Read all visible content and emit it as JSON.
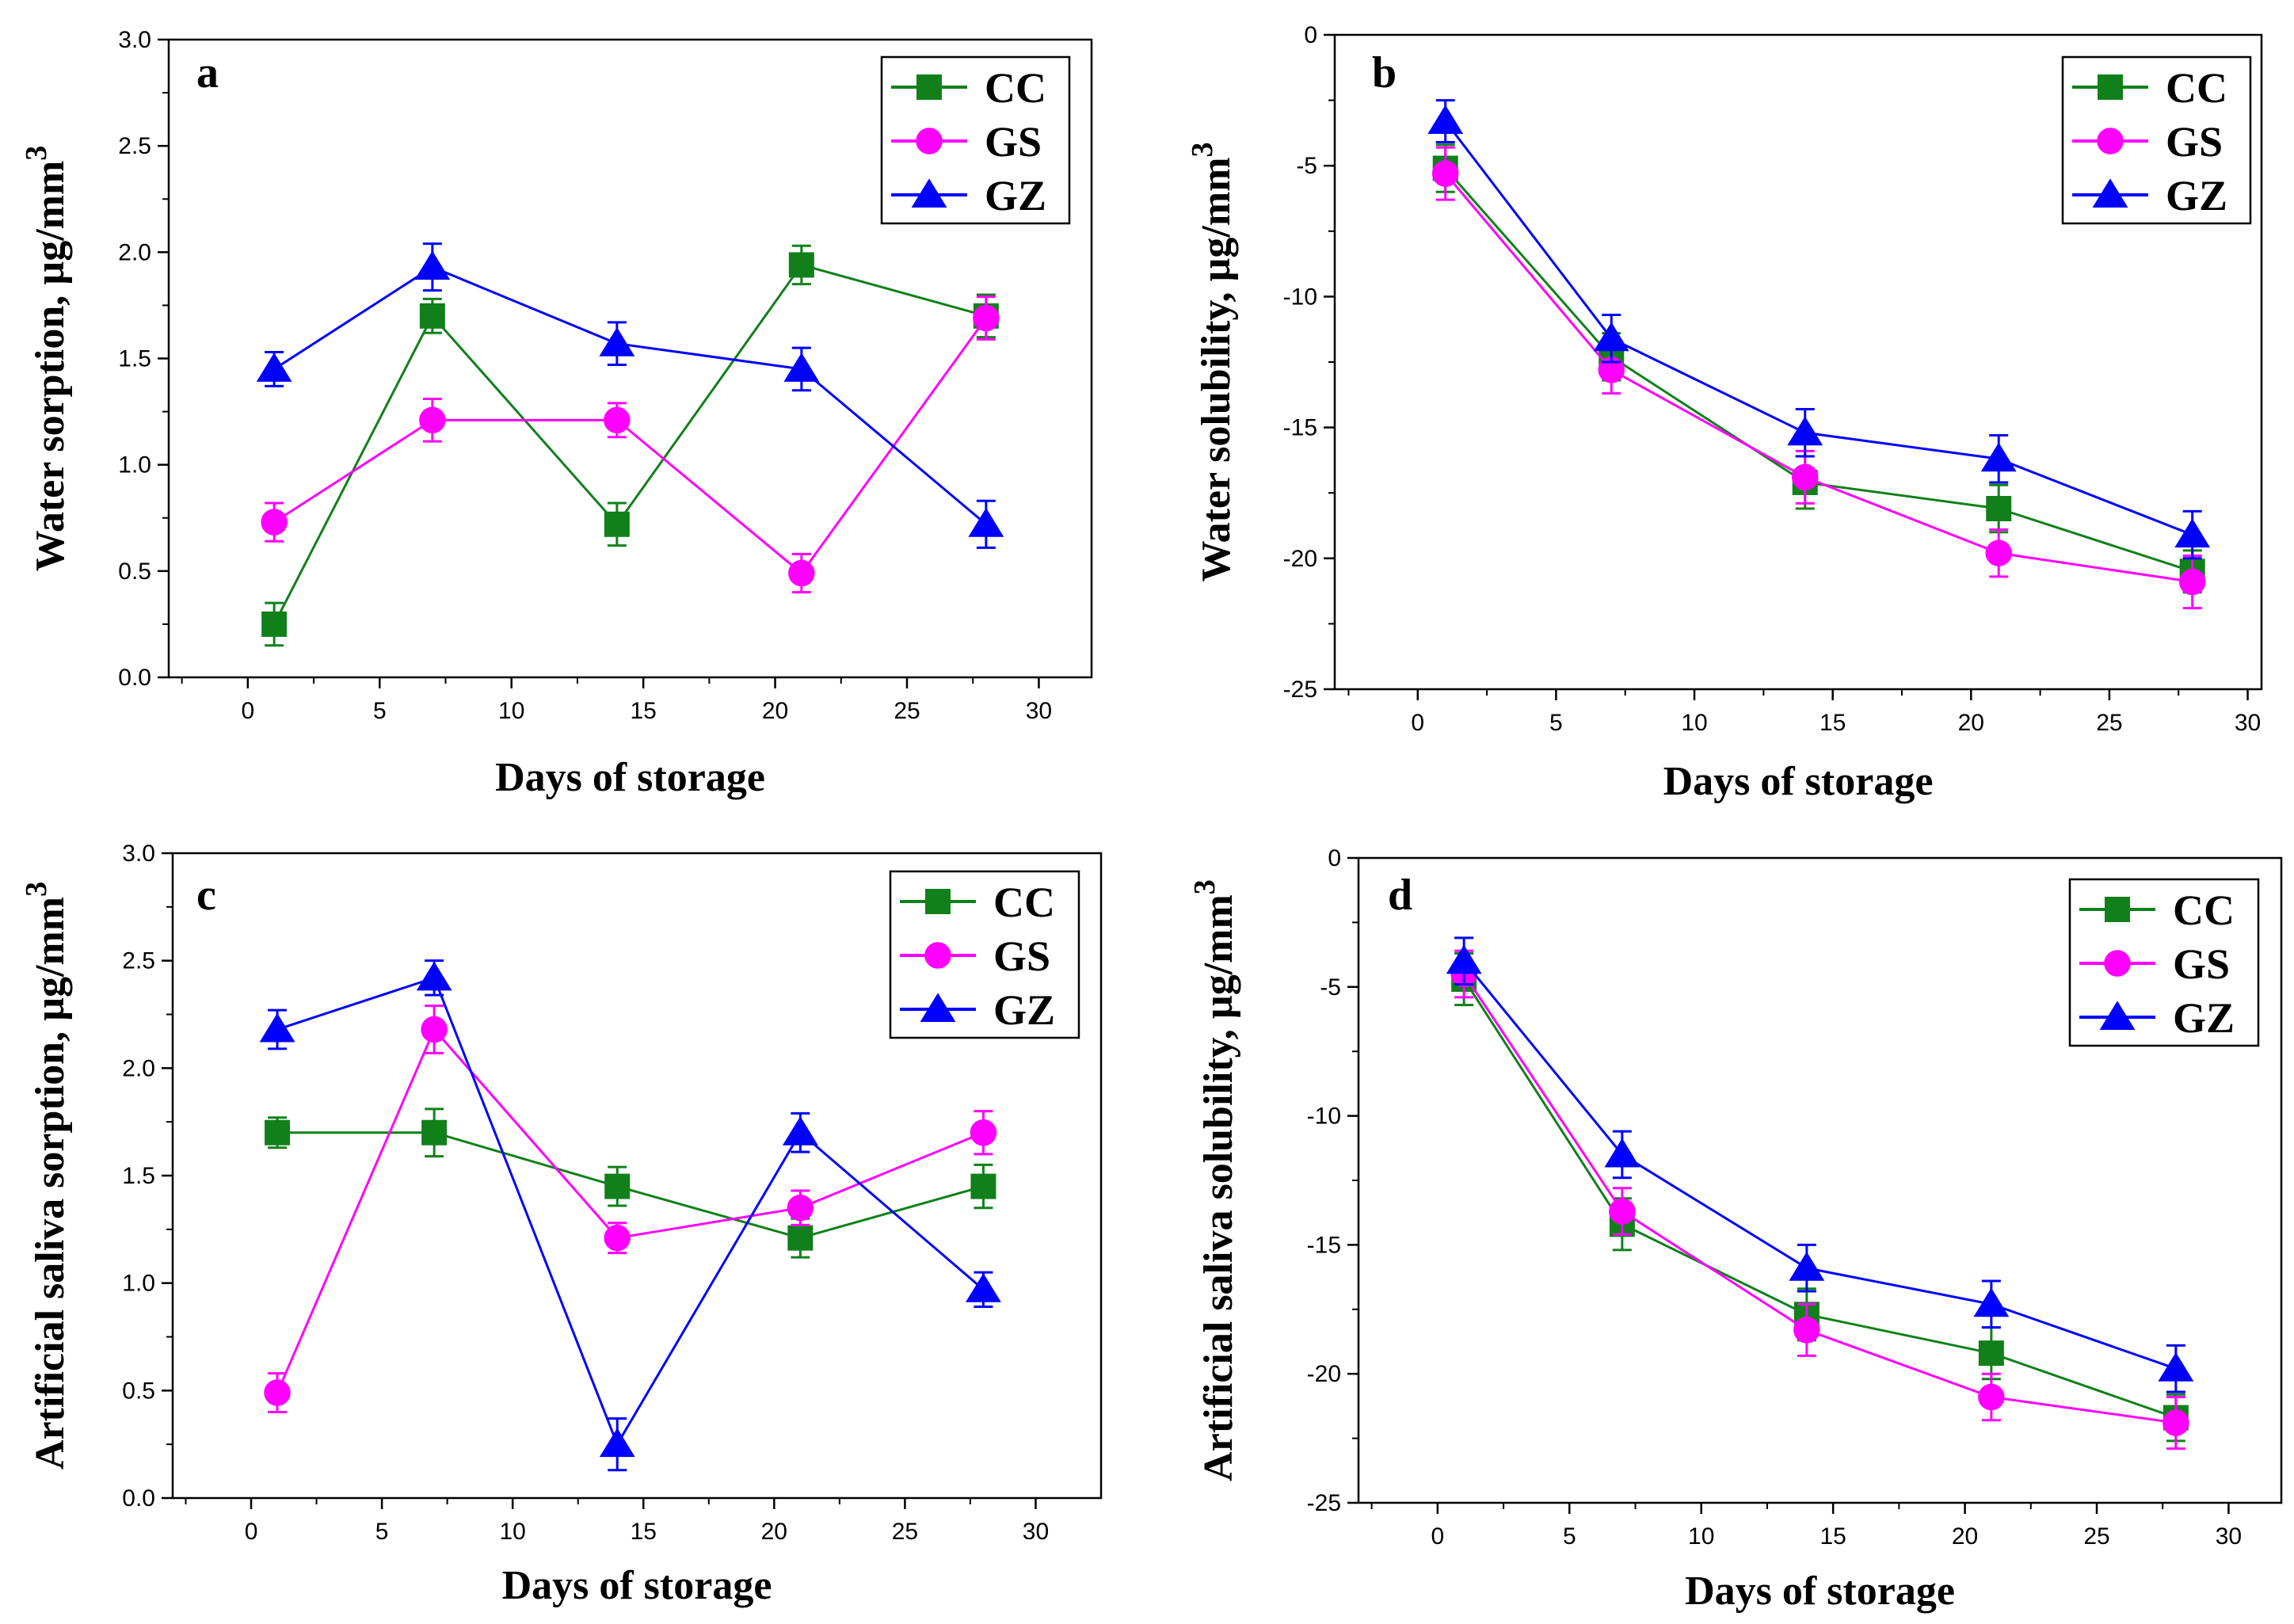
{
  "chart_data": [
    {
      "type": "line",
      "panel": "a",
      "xlabel": "Days of storage",
      "ylabel": "Water sorption, µg/mm",
      "ylabel_sup": "3",
      "xlim": [
        -3,
        32
      ],
      "ylim": [
        0,
        3
      ],
      "xticks": [
        0,
        5,
        10,
        15,
        20,
        25,
        30
      ],
      "yticks": [
        "0.0",
        "0.5",
        "1.0",
        "1.5",
        "2.0",
        "2.5",
        "3.0"
      ],
      "x": [
        1,
        7,
        14,
        21,
        28
      ],
      "legend_position": "top-right",
      "series": [
        {
          "name": "CC",
          "color": "#11801b",
          "marker": "square",
          "values": [
            0.25,
            1.7,
            0.72,
            1.94,
            1.7
          ],
          "errors": [
            0.1,
            0.08,
            0.1,
            0.09,
            0.1
          ]
        },
        {
          "name": "GS",
          "color": "#ff00ff",
          "marker": "circle",
          "values": [
            0.73,
            1.21,
            1.21,
            0.49,
            1.69
          ],
          "errors": [
            0.09,
            0.1,
            0.08,
            0.09,
            0.1
          ]
        },
        {
          "name": "GZ",
          "color": "#0000ff",
          "marker": "triangle",
          "values": [
            1.45,
            1.93,
            1.57,
            1.45,
            0.72
          ],
          "errors": [
            0.08,
            0.11,
            0.1,
            0.1,
            0.11
          ]
        }
      ]
    },
    {
      "type": "line",
      "panel": "b",
      "xlabel": "Days of storage",
      "ylabel": "Water solubility, µg/mm",
      "ylabel_sup": "3",
      "xlim": [
        -3,
        30.5
      ],
      "ylim": [
        -25,
        0
      ],
      "xticks": [
        0,
        5,
        10,
        15,
        20,
        25,
        30
      ],
      "yticks": [
        "-25",
        "-20",
        "-15",
        "-10",
        "-5",
        "0"
      ],
      "x": [
        1,
        7,
        14,
        21,
        28
      ],
      "legend_position": "top-right",
      "series": [
        {
          "name": "CC",
          "color": "#11801b",
          "marker": "square",
          "values": [
            -5.1,
            -12.3,
            -17.1,
            -18.1,
            -20.5
          ],
          "errors": [
            0.9,
            0.9,
            1.0,
            0.9,
            0.8
          ]
        },
        {
          "name": "GS",
          "color": "#ff00ff",
          "marker": "circle",
          "values": [
            -5.3,
            -12.8,
            -16.9,
            -19.8,
            -20.9
          ],
          "errors": [
            1.0,
            0.9,
            1.0,
            0.9,
            1.0
          ]
        },
        {
          "name": "GZ",
          "color": "#0000ff",
          "marker": "triangle",
          "values": [
            -3.3,
            -11.6,
            -15.2,
            -16.2,
            -19.1
          ],
          "errors": [
            0.8,
            0.9,
            0.9,
            0.9,
            0.9
          ]
        }
      ]
    },
    {
      "type": "line",
      "panel": "c",
      "xlabel": "Days of storage",
      "ylabel": "Artificial saliva sorption, µg/mm",
      "ylabel_sup": "3",
      "xlim": [
        -3,
        32.5
      ],
      "ylim": [
        0,
        3
      ],
      "xticks": [
        0,
        5,
        10,
        15,
        20,
        25,
        30
      ],
      "yticks": [
        "0.0",
        "0.5",
        "1.0",
        "1.5",
        "2.0",
        "2.5",
        "3.0"
      ],
      "x": [
        1,
        7,
        14,
        21,
        28
      ],
      "legend_position": "top-right",
      "series": [
        {
          "name": "CC",
          "color": "#11801b",
          "marker": "square",
          "values": [
            1.7,
            1.7,
            1.45,
            1.21,
            1.45
          ],
          "errors": [
            0.07,
            0.11,
            0.09,
            0.09,
            0.1
          ]
        },
        {
          "name": "GS",
          "color": "#ff00ff",
          "marker": "circle",
          "values": [
            0.49,
            2.18,
            1.21,
            1.35,
            1.7
          ],
          "errors": [
            0.09,
            0.11,
            0.07,
            0.08,
            0.1
          ]
        },
        {
          "name": "GZ",
          "color": "#0000ff",
          "marker": "triangle",
          "values": [
            2.18,
            2.42,
            0.25,
            1.7,
            0.97
          ],
          "errors": [
            0.09,
            0.08,
            0.12,
            0.09,
            0.08
          ]
        }
      ]
    },
    {
      "type": "line",
      "panel": "d",
      "xlabel": "Days of storage",
      "ylabel": "Artificial saliva solubility, µg/mm",
      "ylabel_sup": "3",
      "xlim": [
        -3,
        32
      ],
      "ylim": [
        -25,
        0
      ],
      "xticks": [
        0,
        5,
        10,
        15,
        20,
        25,
        30
      ],
      "yticks": [
        "-25",
        "-20",
        "-15",
        "-10",
        "-5",
        "0"
      ],
      "x": [
        1,
        7,
        14,
        21,
        28
      ],
      "legend_position": "top-right",
      "series": [
        {
          "name": "CC",
          "color": "#11801b",
          "marker": "square",
          "values": [
            -4.7,
            -14.2,
            -17.7,
            -19.2,
            -21.7
          ],
          "errors": [
            1.0,
            1.0,
            1.0,
            1.0,
            0.9
          ]
        },
        {
          "name": "GS",
          "color": "#ff00ff",
          "marker": "circle",
          "values": [
            -4.5,
            -13.7,
            -18.3,
            -20.9,
            -21.9
          ],
          "errors": [
            0.9,
            0.9,
            1.0,
            0.9,
            1.0
          ]
        },
        {
          "name": "GZ",
          "color": "#0000ff",
          "marker": "triangle",
          "values": [
            -4.0,
            -11.5,
            -15.9,
            -17.3,
            -19.8
          ],
          "errors": [
            0.9,
            0.9,
            0.9,
            0.9,
            0.9
          ]
        }
      ]
    }
  ]
}
